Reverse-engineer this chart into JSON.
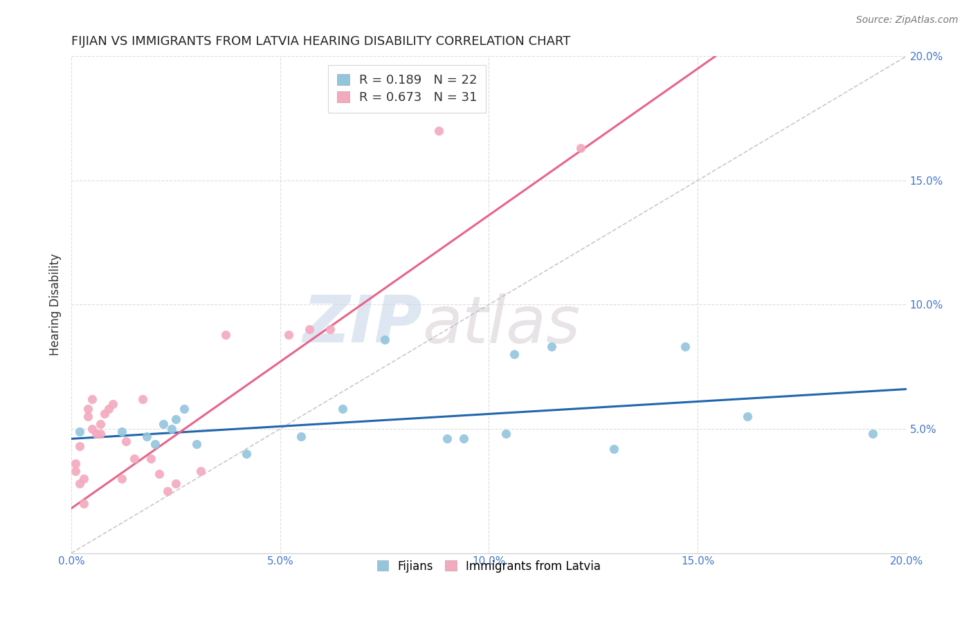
{
  "title": "FIJIAN VS IMMIGRANTS FROM LATVIA HEARING DISABILITY CORRELATION CHART",
  "source": "Source: ZipAtlas.com",
  "ylabel": "Hearing Disability",
  "xlim": [
    0.0,
    0.2
  ],
  "ylim": [
    0.0,
    0.2
  ],
  "xticks": [
    0.0,
    0.05,
    0.1,
    0.15,
    0.2
  ],
  "yticks": [
    0.05,
    0.1,
    0.15,
    0.2
  ],
  "xticklabels": [
    "0.0%",
    "5.0%",
    "10.0%",
    "15.0%",
    "20.0%"
  ],
  "yticklabels": [
    "5.0%",
    "10.0%",
    "15.0%",
    "20.0%"
  ],
  "background_color": "#ffffff",
  "grid_color": "#dddddd",
  "watermark_zip": "ZIP",
  "watermark_atlas": "atlas",
  "fijian_color": "#92c5de",
  "latvia_color": "#f4a9be",
  "fijian_line_color": "#2166ac",
  "latvia_line_color": "#e8648a",
  "legend_r_fijian": "R = 0.189",
  "legend_n_fijian": "N = 22",
  "legend_r_latvia": "R = 0.673",
  "legend_n_latvia": "N = 31",
  "fijian_x": [
    0.002,
    0.012,
    0.018,
    0.02,
    0.022,
    0.024,
    0.025,
    0.027,
    0.03,
    0.042,
    0.055,
    0.065,
    0.075,
    0.09,
    0.094,
    0.104,
    0.106,
    0.115,
    0.13,
    0.147,
    0.162,
    0.192
  ],
  "fijian_y": [
    0.049,
    0.049,
    0.047,
    0.044,
    0.052,
    0.05,
    0.054,
    0.058,
    0.044,
    0.04,
    0.047,
    0.058,
    0.086,
    0.046,
    0.046,
    0.048,
    0.08,
    0.083,
    0.042,
    0.083,
    0.055,
    0.048
  ],
  "latvia_x": [
    0.001,
    0.001,
    0.002,
    0.002,
    0.003,
    0.003,
    0.004,
    0.004,
    0.005,
    0.005,
    0.006,
    0.007,
    0.007,
    0.008,
    0.009,
    0.01,
    0.012,
    0.013,
    0.015,
    0.017,
    0.019,
    0.021,
    0.023,
    0.025,
    0.031,
    0.037,
    0.052,
    0.057,
    0.062,
    0.088,
    0.122
  ],
  "latvia_y": [
    0.036,
    0.033,
    0.028,
    0.043,
    0.02,
    0.03,
    0.055,
    0.058,
    0.062,
    0.05,
    0.048,
    0.052,
    0.048,
    0.056,
    0.058,
    0.06,
    0.03,
    0.045,
    0.038,
    0.062,
    0.038,
    0.032,
    0.025,
    0.028,
    0.033,
    0.088,
    0.088,
    0.09,
    0.09,
    0.17,
    0.163
  ],
  "fijian_slope": 0.1,
  "fijian_intercept": 0.046,
  "latvia_slope": 1.18,
  "latvia_intercept": 0.018,
  "dashed_slope": 1.0,
  "dashed_intercept": 0.0,
  "legend_color_r": "#3366cc",
  "legend_color_n": "#3366cc"
}
